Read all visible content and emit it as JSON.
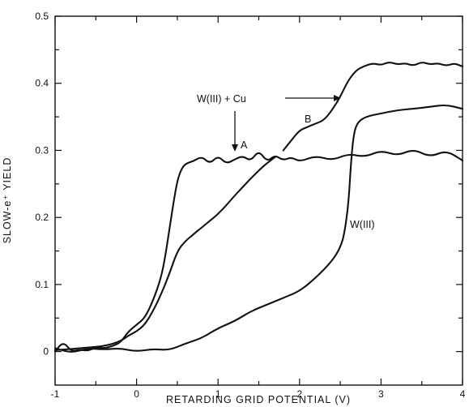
{
  "chart_data": {
    "type": "line",
    "title": "",
    "xlabel": "RETARDING GRID POTENTIAL (V)",
    "ylabel": "SLOW-e⁺ YIELD",
    "xlim": [
      -1,
      4
    ],
    "ylim": [
      -0.05,
      0.5
    ],
    "x_ticks": [
      "-1",
      "0",
      "1",
      "2",
      "3",
      "4"
    ],
    "y_ticks": [
      "0",
      "0.1",
      "0.2",
      "0.3",
      "0.4",
      "0.5"
    ],
    "grid": false,
    "legend": "none",
    "series": [
      {
        "name": "A",
        "points": [
          [
            -1,
            0.0
          ],
          [
            -0.9,
            0.015
          ],
          [
            -0.8,
            0.0
          ],
          [
            -0.7,
            0.003
          ],
          [
            -0.6,
            0.001
          ],
          [
            -0.5,
            0.006
          ],
          [
            -0.4,
            0.005
          ],
          [
            -0.3,
            0.008
          ],
          [
            -0.2,
            0.013
          ],
          [
            -0.1,
            0.03
          ],
          [
            0.0,
            0.04
          ],
          [
            0.1,
            0.05
          ],
          [
            0.2,
            0.075
          ],
          [
            0.3,
            0.11
          ],
          [
            0.35,
            0.14
          ],
          [
            0.4,
            0.18
          ],
          [
            0.45,
            0.22
          ],
          [
            0.5,
            0.255
          ],
          [
            0.55,
            0.272
          ],
          [
            0.6,
            0.28
          ],
          [
            0.7,
            0.284
          ],
          [
            0.8,
            0.291
          ],
          [
            0.9,
            0.28
          ],
          [
            1.0,
            0.292
          ],
          [
            1.1,
            0.28
          ],
          [
            1.2,
            0.286
          ],
          [
            1.3,
            0.292
          ],
          [
            1.4,
            0.284
          ],
          [
            1.5,
            0.3
          ],
          [
            1.6,
            0.283
          ],
          [
            1.7,
            0.293
          ],
          [
            1.8,
            0.285
          ],
          [
            1.9,
            0.29
          ],
          [
            2.0,
            0.283
          ],
          [
            2.2,
            0.292
          ],
          [
            2.4,
            0.285
          ],
          [
            2.6,
            0.295
          ],
          [
            2.8,
            0.29
          ],
          [
            3.0,
            0.3
          ],
          [
            3.2,
            0.292
          ],
          [
            3.4,
            0.302
          ],
          [
            3.6,
            0.29
          ],
          [
            3.8,
            0.3
          ],
          [
            4.0,
            0.285
          ]
        ]
      },
      {
        "name": "B",
        "points": [
          [
            -1,
            0.002
          ],
          [
            -0.8,
            0.004
          ],
          [
            -0.6,
            0.006
          ],
          [
            -0.4,
            0.008
          ],
          [
            -0.2,
            0.015
          ],
          [
            -0.1,
            0.024
          ],
          [
            0.0,
            0.03
          ],
          [
            0.1,
            0.04
          ],
          [
            0.2,
            0.06
          ],
          [
            0.3,
            0.085
          ],
          [
            0.4,
            0.115
          ],
          [
            0.5,
            0.15
          ],
          [
            0.6,
            0.165
          ],
          [
            0.7,
            0.175
          ],
          [
            0.8,
            0.185
          ],
          [
            0.9,
            0.195
          ],
          [
            1.0,
            0.205
          ],
          [
            1.1,
            0.218
          ],
          [
            1.2,
            0.232
          ],
          [
            1.3,
            0.245
          ],
          [
            1.4,
            0.258
          ],
          [
            1.5,
            0.27
          ],
          [
            1.6,
            0.281
          ],
          [
            1.7,
            0.29
          ]
        ]
      },
      {
        "name": "W(III) + Cu",
        "points": [
          [
            1.8,
            0.3
          ],
          [
            1.9,
            0.315
          ],
          [
            2.0,
            0.33
          ],
          [
            2.1,
            0.335
          ],
          [
            2.2,
            0.34
          ],
          [
            2.3,
            0.345
          ],
          [
            2.4,
            0.36
          ],
          [
            2.5,
            0.38
          ],
          [
            2.6,
            0.405
          ],
          [
            2.7,
            0.42
          ],
          [
            2.8,
            0.426
          ],
          [
            2.9,
            0.43
          ],
          [
            3.0,
            0.427
          ],
          [
            3.1,
            0.432
          ],
          [
            3.2,
            0.428
          ],
          [
            3.3,
            0.43
          ],
          [
            3.4,
            0.426
          ],
          [
            3.5,
            0.432
          ],
          [
            3.6,
            0.428
          ],
          [
            3.7,
            0.43
          ],
          [
            3.8,
            0.426
          ],
          [
            3.9,
            0.43
          ],
          [
            4.0,
            0.425
          ]
        ]
      },
      {
        "name": "W(III)",
        "points": [
          [
            -1,
            0.005
          ],
          [
            -0.8,
            -0.002
          ],
          [
            -0.6,
            0.005
          ],
          [
            -0.4,
            0.003
          ],
          [
            -0.2,
            0.005
          ],
          [
            0.0,
            0.0
          ],
          [
            0.2,
            0.004
          ],
          [
            0.4,
            0.002
          ],
          [
            0.6,
            0.012
          ],
          [
            0.8,
            0.02
          ],
          [
            1.0,
            0.035
          ],
          [
            1.2,
            0.045
          ],
          [
            1.4,
            0.06
          ],
          [
            1.6,
            0.07
          ],
          [
            1.8,
            0.08
          ],
          [
            2.0,
            0.09
          ],
          [
            2.2,
            0.11
          ],
          [
            2.4,
            0.135
          ],
          [
            2.5,
            0.155
          ],
          [
            2.55,
            0.175
          ],
          [
            2.6,
            0.22
          ],
          [
            2.63,
            0.28
          ],
          [
            2.66,
            0.32
          ],
          [
            2.7,
            0.34
          ],
          [
            2.8,
            0.35
          ],
          [
            3.0,
            0.355
          ],
          [
            3.2,
            0.36
          ],
          [
            3.4,
            0.362
          ],
          [
            3.6,
            0.365
          ],
          [
            3.8,
            0.368
          ],
          [
            4.0,
            0.362
          ]
        ]
      }
    ],
    "annotations": [
      {
        "text": "W(III) + Cu",
        "points_to": [
          1.2,
          0.283
        ]
      },
      {
        "text": "A",
        "points_to": null
      },
      {
        "text": "B",
        "points_to": null
      },
      {
        "text": "W(III)",
        "points_to": null
      }
    ]
  }
}
